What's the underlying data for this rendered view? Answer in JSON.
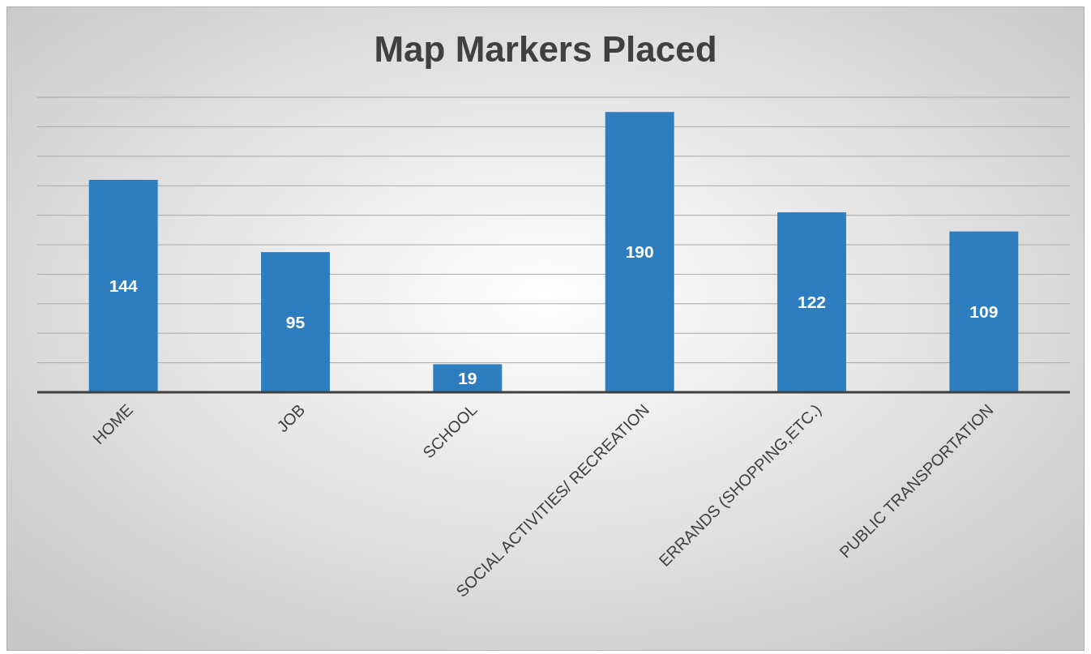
{
  "chart_data": {
    "type": "bar",
    "title": "Map Markers Placed",
    "categories": [
      "HOME",
      "JOB",
      "SCHOOL",
      "SOCIAL ACTIVITIES/ RECREATION",
      "ERRANDS (SHOPPING,ETC.)",
      "PUBLIC TRANSPORTATION"
    ],
    "values": [
      144,
      95,
      19,
      190,
      122,
      109
    ],
    "color": "#2e7ebf",
    "ylim": [
      0,
      200
    ],
    "yticks": [
      {
        "value": 0,
        "label": null
      },
      {
        "value": 20,
        "label": null
      },
      {
        "value": 40,
        "label": null
      },
      {
        "value": 60,
        "label": null
      },
      {
        "value": 80,
        "label": null
      },
      {
        "value": 100,
        "label": null
      },
      {
        "value": 120,
        "label": null
      },
      {
        "value": 140,
        "label": null
      },
      {
        "value": 160,
        "label": null
      },
      {
        "value": 180,
        "label": null
      },
      {
        "value": 200,
        "label": null
      }
    ],
    "grid": "y",
    "tick_labels": "x",
    "data_labels": true
  }
}
